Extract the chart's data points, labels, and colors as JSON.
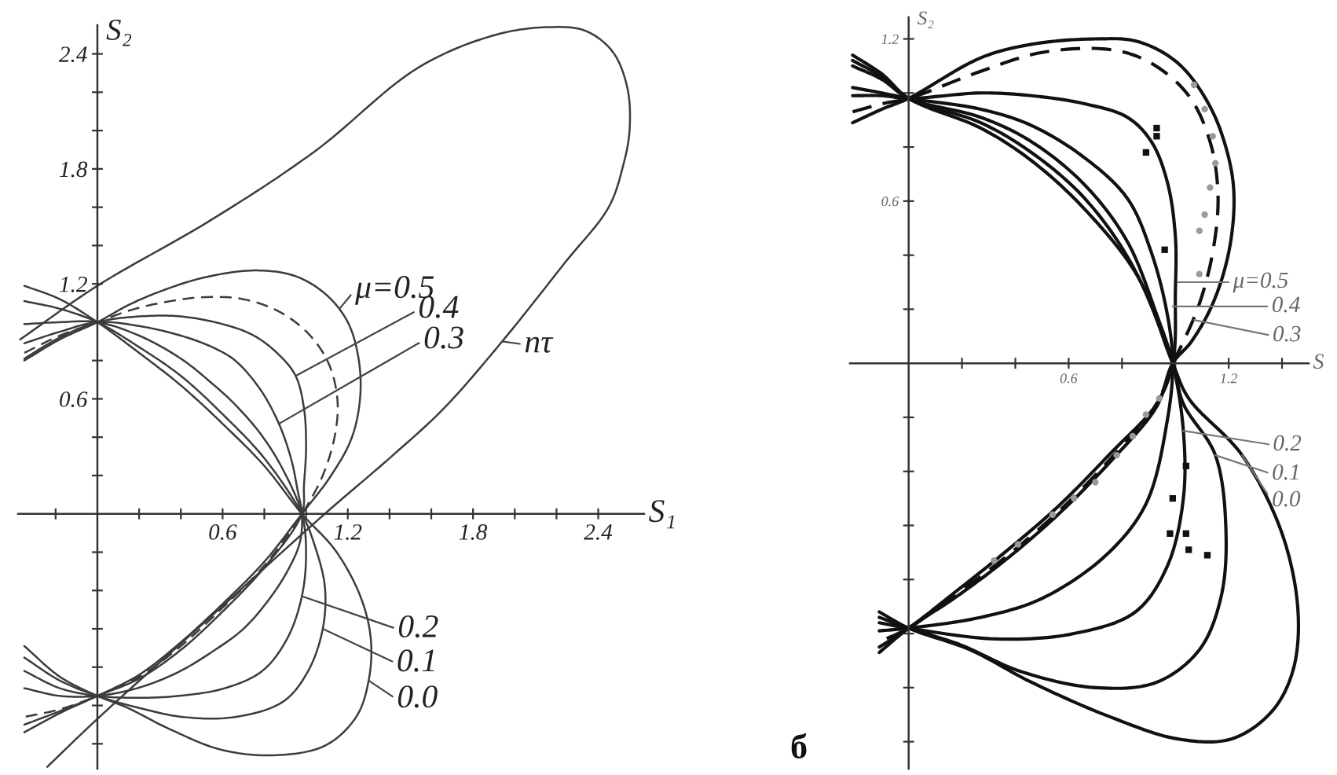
{
  "chart_data": [
    {
      "type": "line",
      "xlabel": "S₁",
      "ylabel": "S₂",
      "xlim": [
        -0.38,
        2.62
      ],
      "ylim": [
        -1.33,
        2.55
      ],
      "xticks": [
        {
          "value": -0.2,
          "label": null
        },
        {
          "value": 0.2,
          "label": null
        },
        {
          "value": 0.4,
          "label": null
        },
        0.6,
        {
          "value": 0.8,
          "label": null
        },
        {
          "value": 1.0,
          "label": null
        },
        1.2,
        {
          "value": 1.4,
          "label": null
        },
        {
          "value": 1.6,
          "label": null
        },
        1.8,
        {
          "value": 2.0,
          "label": null
        },
        {
          "value": 2.2,
          "label": null
        },
        2.4
      ],
      "yticks": [
        {
          "value": -1.2,
          "label": null
        },
        {
          "value": -1.0,
          "label": null
        },
        {
          "value": -0.8,
          "label": null
        },
        {
          "value": -0.6,
          "label": null
        },
        {
          "value": -0.4,
          "label": null
        },
        {
          "value": -0.2,
          "label": null
        },
        {
          "value": 0.2,
          "label": null
        },
        {
          "value": 0.4,
          "label": null
        },
        0.6,
        {
          "value": 0.8,
          "label": null
        },
        {
          "value": 1.0,
          "label": null
        },
        1.2,
        {
          "value": 1.4,
          "label": null
        },
        {
          "value": 1.6,
          "label": null
        },
        1.8,
        {
          "value": 2.0,
          "label": null
        },
        {
          "value": 2.2,
          "label": null
        },
        2.4
      ],
      "series": [
        {
          "type": "line",
          "color": "#3c3c3c",
          "line_style": "solid",
          "x": [
            -0.35,
            -0.18,
            0,
            0.2,
            0.4,
            0.6,
            0.8,
            0.98,
            1.14,
            1.26,
            1.31,
            1.3,
            1.24,
            1.09,
            0.84,
            0.59,
            0.34,
            0.14,
            0,
            -0.18,
            -0.35
          ],
          "values": [
            1.19,
            1.12,
            1.0,
            0.84,
            0.67,
            0.47,
            0.25,
            0,
            -0.19,
            -0.43,
            -0.65,
            -0.87,
            -1.06,
            -1.21,
            -1.26,
            -1.23,
            -1.12,
            -1.01,
            -0.95,
            -0.85,
            -0.69
          ]
        },
        {
          "type": "line",
          "color": "#3c3c3c",
          "line_style": "solid",
          "x": [
            -0.35,
            -0.18,
            0,
            0.2,
            0.4,
            0.6,
            0.8,
            0.98,
            1.04,
            1.09,
            1.08,
            1.01,
            0.89,
            0.66,
            0.41,
            0.19,
            0,
            -0.18,
            -0.35
          ],
          "values": [
            1.11,
            1.07,
            1.0,
            0.87,
            0.72,
            0.52,
            0.29,
            0,
            -0.16,
            -0.38,
            -0.6,
            -0.82,
            -0.98,
            -1.06,
            -1.06,
            -1.01,
            -0.95,
            -0.87,
            -0.75
          ]
        },
        {
          "type": "line",
          "color": "#3c3c3c",
          "line_style": "solid",
          "x": [
            -0.35,
            -0.18,
            0,
            0.2,
            0.4,
            0.55,
            0.66,
            0.78,
            0.88,
            0.98,
            1.0,
            0.98,
            0.91,
            0.79,
            0.61,
            0.39,
            0.19,
            0,
            -0.18,
            -0.35
          ],
          "values": [
            0.99,
            1.0,
            1.0,
            0.93,
            0.81,
            0.68,
            0.57,
            0.42,
            0.25,
            0,
            -0.2,
            -0.43,
            -0.65,
            -0.82,
            -0.91,
            -0.95,
            -0.96,
            -0.95,
            -0.91,
            -0.82
          ]
        },
        {
          "type": "line",
          "color": "#3c3c3c",
          "line_style": "solid",
          "x": [
            -0.35,
            -0.18,
            0,
            0.2,
            0.4,
            0.55,
            0.66,
            0.78,
            0.87,
            0.93,
            0.96,
            0.98,
            0.97,
            0.91,
            0.82,
            0.7,
            0.55,
            0.38,
            0.19,
            0,
            -0.18,
            -0.35
          ],
          "values": [
            0.89,
            0.95,
            1.0,
            0.98,
            0.93,
            0.87,
            0.8,
            0.65,
            0.47,
            0.28,
            0.12,
            0,
            -0.15,
            -0.3,
            -0.45,
            -0.6,
            -0.72,
            -0.83,
            -0.91,
            -0.95,
            -0.95,
            -0.91
          ]
        },
        {
          "type": "line",
          "color": "#3c3c3c",
          "line_style": "solid",
          "x": [
            -0.35,
            -0.18,
            0,
            0.2,
            0.4,
            0.6,
            0.75,
            0.87,
            0.95,
            0.99,
            1.0,
            0.99,
            0.98,
            0.8,
            0.6,
            0.4,
            0.2,
            0,
            -0.18,
            -0.35
          ],
          "values": [
            0.81,
            0.92,
            1.0,
            1.03,
            1.03,
            0.99,
            0.93,
            0.83,
            0.72,
            0.55,
            0.35,
            0.15,
            0,
            -0.28,
            -0.51,
            -0.71,
            -0.86,
            -0.95,
            -1.03,
            -1.1
          ]
        },
        {
          "type": "line",
          "color": "#3c3c3c",
          "line_style": "dashed",
          "x": [
            -0.35,
            -0.18,
            0,
            0.15,
            0.3,
            0.5,
            0.7,
            0.88,
            1.02,
            1.11,
            1.15,
            1.14,
            1.08,
            0.98,
            0.8,
            0.6,
            0.4,
            0.2,
            0,
            -0.18,
            -0.35
          ],
          "values": [
            0.84,
            0.93,
            1.0,
            1.06,
            1.1,
            1.13,
            1.12,
            1.05,
            0.93,
            0.78,
            0.6,
            0.42,
            0.2,
            0,
            -0.27,
            -0.49,
            -0.69,
            -0.85,
            -0.95,
            -1.02,
            -1.06
          ]
        },
        {
          "type": "line",
          "color": "#3c3c3c",
          "line_style": "solid",
          "x": [
            -0.35,
            -0.18,
            0,
            0.15,
            0.3,
            0.5,
            0.75,
            0.95,
            1.1,
            1.2,
            1.25,
            1.26,
            1.22,
            1.12,
            0.98,
            0.8,
            0.6,
            0.4,
            0.2,
            0,
            -0.18,
            -0.35
          ],
          "values": [
            0.8,
            0.91,
            1.0,
            1.09,
            1.16,
            1.23,
            1.27,
            1.24,
            1.14,
            1.0,
            0.82,
            0.62,
            0.4,
            0.2,
            0,
            -0.25,
            -0.47,
            -0.67,
            -0.84,
            -0.95,
            -1.04,
            -1.14
          ]
        },
        {
          "type": "line",
          "color": "#3c3c3c",
          "line_style": "solid",
          "x": [
            -0.37,
            0,
            0.54,
            1.04,
            1.54,
            1.91,
            2.17,
            2.34,
            2.47,
            2.54,
            2.55,
            2.52,
            2.45,
            2.24,
            1.94,
            1.66,
            1.41,
            1.09,
            0.54,
            0,
            -0.24
          ],
          "values": [
            0.91,
            1.19,
            1.53,
            1.89,
            2.33,
            2.5,
            2.54,
            2.52,
            2.41,
            2.22,
            2.0,
            1.82,
            1.6,
            1.31,
            0.9,
            0.55,
            0.3,
            0.0,
            -0.54,
            -1.07,
            -1.32
          ]
        }
      ],
      "annotations": [
        {
          "text": "μ=0.5",
          "x": 1.16,
          "y": 1.07
        },
        {
          "text": "0.4",
          "x": 0.95,
          "y": 0.72
        },
        {
          "text": "0.3",
          "x": 0.87,
          "y": 0.47
        },
        {
          "text": "nτ",
          "x": 1.94,
          "y": 0.9
        },
        {
          "text": "0.2",
          "x": 0.98,
          "y": -0.43
        },
        {
          "text": "0.1",
          "x": 1.08,
          "y": -0.6
        },
        {
          "text": "0.0",
          "x": 1.3,
          "y": -0.87
        }
      ]
    },
    {
      "type": "line",
      "xlabel": "S",
      "ylabel": "S₂",
      "xlim": [
        -0.22,
        1.5
      ],
      "ylim": [
        -1.5,
        1.28
      ],
      "xticks": [
        {
          "value": 0.2,
          "label": null
        },
        {
          "value": 0.4,
          "label": null
        },
        0.6,
        {
          "value": 0.8,
          "label": null
        },
        {
          "value": 1.0,
          "label": null
        },
        1.2,
        {
          "value": 1.4,
          "label": null
        }
      ],
      "yticks": [
        {
          "value": -1.4,
          "label": null
        },
        {
          "value": -1.2,
          "label": null
        },
        {
          "value": -1.0,
          "label": null
        },
        {
          "value": -0.8,
          "label": null
        },
        {
          "value": -0.6,
          "label": null
        },
        {
          "value": -0.4,
          "label": null
        },
        {
          "value": -0.2,
          "label": null
        },
        {
          "value": 0.2,
          "label": null
        },
        {
          "value": 0.4,
          "label": null
        },
        0.6,
        {
          "value": 0.8,
          "label": null
        },
        {
          "value": 1.0,
          "label": null
        },
        1.2
      ],
      "series": [
        {
          "type": "line",
          "color": "#111111",
          "line_style": "solid",
          "x": [
            -0.21,
            -0.1,
            0,
            0.27,
            0.46,
            0.66,
            0.86,
            0.99,
            1.05,
            1.25,
            1.4,
            1.46,
            1.44,
            1.36,
            1.21,
            1.01,
            0.76,
            0.46,
            0.23,
            0,
            -0.11
          ],
          "values": [
            1.14,
            1.07,
            0.98,
            0.87,
            0.75,
            0.57,
            0.32,
            0,
            -0.13,
            -0.34,
            -0.63,
            -0.92,
            -1.14,
            -1.29,
            -1.39,
            -1.39,
            -1.31,
            -1.18,
            -1.06,
            -0.98,
            -0.92
          ]
        },
        {
          "type": "line",
          "color": "#111111",
          "line_style": "solid",
          "x": [
            -0.21,
            -0.1,
            0,
            0.27,
            0.46,
            0.66,
            0.84,
            0.99,
            1.03,
            1.15,
            1.19,
            1.17,
            1.09,
            0.93,
            0.7,
            0.42,
            0.19,
            0,
            -0.11
          ],
          "values": [
            1.12,
            1.06,
            0.98,
            0.89,
            0.78,
            0.61,
            0.36,
            0,
            -0.15,
            -0.34,
            -0.63,
            -0.87,
            -1.06,
            -1.18,
            -1.2,
            -1.14,
            -1.04,
            -0.98,
            -0.94
          ]
        },
        {
          "type": "line",
          "color": "#111111",
          "line_style": "solid",
          "x": [
            -0.21,
            -0.1,
            0,
            0.27,
            0.46,
            0.66,
            0.82,
            0.93,
            0.99,
            1.03,
            1.03,
            0.97,
            0.85,
            0.62,
            0.33,
            0,
            -0.11
          ],
          "values": [
            1.1,
            1.05,
            0.98,
            0.91,
            0.82,
            0.66,
            0.45,
            0.18,
            0,
            -0.25,
            -0.5,
            -0.75,
            -0.92,
            -1.0,
            -1.02,
            -0.98,
            -0.96
          ]
        },
        {
          "type": "line",
          "color": "#111111",
          "line_style": "solid",
          "x": [
            -0.21,
            -0.1,
            0,
            0.27,
            0.46,
            0.66,
            0.82,
            0.91,
            0.97,
            0.99,
            0.97,
            0.89,
            0.74,
            0.5,
            0.27,
            0,
            -0.11
          ],
          "values": [
            1.02,
            1.0,
            0.98,
            0.94,
            0.88,
            0.76,
            0.61,
            0.41,
            0.18,
            0,
            -0.21,
            -0.52,
            -0.71,
            -0.87,
            -0.94,
            -0.98,
            -0.99
          ]
        },
        {
          "type": "line",
          "color": "#111111",
          "line_style": "solid",
          "x": [
            -0.21,
            -0.1,
            0,
            0.27,
            0.46,
            0.66,
            0.82,
            0.91,
            0.97,
            1.0,
            1.0,
            0.99,
            0.93,
            0.76,
            0.56,
            0.36,
            0.17,
            0,
            -0.11
          ],
          "values": [
            0.99,
            0.99,
            0.98,
            1.0,
            0.99,
            0.96,
            0.91,
            0.82,
            0.67,
            0.47,
            0.26,
            0,
            -0.15,
            -0.33,
            -0.53,
            -0.7,
            -0.85,
            -0.98,
            -1.05
          ]
        },
        {
          "type": "line",
          "color": "#111111",
          "line_style": "dashed",
          "x": [
            -0.21,
            -0.1,
            0,
            0.27,
            0.5,
            0.76,
            0.91,
            1.05,
            1.13,
            1.16,
            1.14,
            1.09,
            1.03,
            0.99,
            0.93,
            0.76,
            0.56,
            0.36,
            0.17,
            0,
            -0.11
          ],
          "values": [
            0.93,
            0.96,
            0.98,
            1.08,
            1.15,
            1.16,
            1.11,
            0.99,
            0.82,
            0.62,
            0.41,
            0.22,
            0.08,
            0,
            -0.15,
            -0.35,
            -0.55,
            -0.72,
            -0.86,
            -0.98,
            -1.03
          ]
        },
        {
          "type": "line",
          "color": "#111111",
          "line_style": "solid",
          "x": [
            -0.21,
            -0.1,
            0,
            0.27,
            0.46,
            0.7,
            0.86,
            1.01,
            1.13,
            1.2,
            1.22,
            1.2,
            1.14,
            1.06,
            0.99,
            0.93,
            0.76,
            0.56,
            0.36,
            0.17,
            0,
            -0.11
          ],
          "values": [
            0.89,
            0.94,
            0.98,
            1.13,
            1.18,
            1.2,
            1.19,
            1.11,
            0.95,
            0.76,
            0.61,
            0.41,
            0.22,
            0.08,
            0,
            -0.16,
            -0.36,
            -0.56,
            -0.73,
            -0.87,
            -0.98,
            -1.07
          ]
        },
        {
          "type": "scatter",
          "color": "#9a9a9a",
          "marker": "circle",
          "x": [
            1.07,
            1.11,
            1.14,
            1.15,
            1.13,
            1.11,
            1.09,
            1.09,
            0.32,
            0.41,
            0.54,
            0.62,
            0.7,
            0.78,
            0.84,
            0.89,
            0.94
          ],
          "values": [
            1.03,
            0.94,
            0.84,
            0.74,
            0.65,
            0.55,
            0.49,
            0.33,
            -0.73,
            -0.67,
            -0.56,
            -0.5,
            -0.44,
            -0.34,
            -0.27,
            -0.19,
            -0.13
          ]
        },
        {
          "type": "scatter",
          "color": "#111111",
          "marker": "square",
          "x": [
            0.93,
            0.93,
            0.89,
            0.96,
            1.04,
            0.99,
            0.98,
            1.04,
            1.05,
            1.12
          ],
          "values": [
            0.87,
            0.84,
            0.78,
            0.42,
            -0.38,
            -0.5,
            -0.63,
            -0.63,
            -0.69,
            -0.71
          ]
        }
      ],
      "annotations": [
        {
          "text": "μ=0.5",
          "x": 1.01,
          "y": 0.3
        },
        {
          "text": "0.4",
          "x": 0.99,
          "y": 0.21
        },
        {
          "text": "0.3",
          "x": 1.07,
          "y": 0.16
        },
        {
          "text": "0.2",
          "x": 1.03,
          "y": -0.25
        },
        {
          "text": "0.1",
          "x": 1.15,
          "y": -0.34
        },
        {
          "text": "0.0",
          "x": 1.25,
          "y": -0.34
        },
        "б"
      ]
    }
  ]
}
